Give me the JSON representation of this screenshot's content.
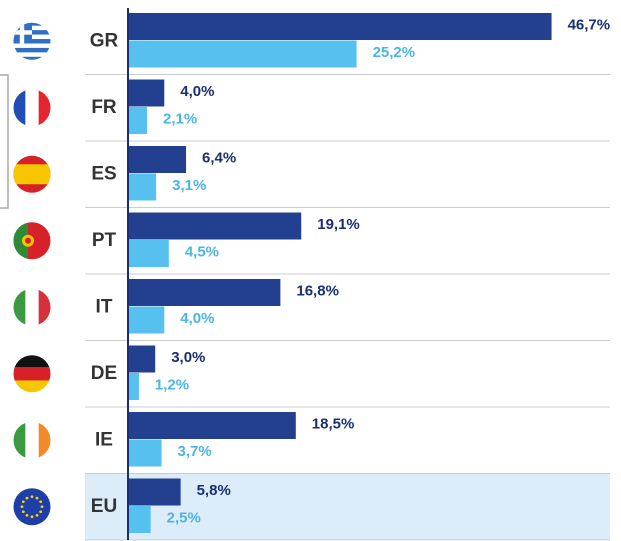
{
  "chart_data": {
    "type": "bar",
    "orientation": "horizontal",
    "categories": [
      "GR",
      "FR",
      "ES",
      "PT",
      "IT",
      "DE",
      "IE",
      "EU"
    ],
    "series": [
      {
        "color": "#22408f",
        "label_color": "#1a2f73",
        "values": [
          46.7,
          4.0,
          6.4,
          19.1,
          16.8,
          3.0,
          18.5,
          5.8
        ],
        "value_labels": [
          "46,7%",
          "4,0%",
          "6,4%",
          "19,1%",
          "16,8%",
          "3,0%",
          "18,5%",
          "5,8%"
        ]
      },
      {
        "color": "#56c1ee",
        "label_color": "#4bb5e4",
        "values": [
          25.2,
          2.1,
          3.1,
          4.5,
          4.0,
          1.2,
          3.7,
          2.5
        ],
        "value_labels": [
          "25,2%",
          "2,1%",
          "3,1%",
          "4,5%",
          "4,0%",
          "1,2%",
          "3,7%",
          "2,5%"
        ]
      }
    ]
  }
}
